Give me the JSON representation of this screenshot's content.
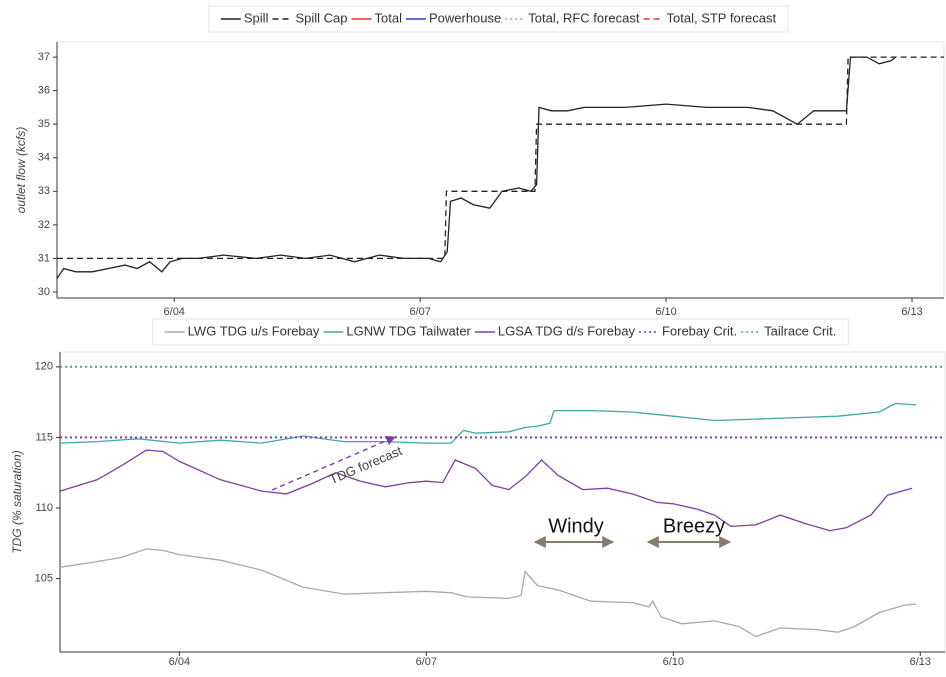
{
  "chart_data": [
    {
      "type": "line",
      "ylabel": "outlet flow (kcfs)",
      "xlim": [
        2.57,
        13.39
      ],
      "ylim": [
        29.82,
        37.45
      ],
      "xticks": [
        {
          "value": 4,
          "label": "6/04"
        },
        {
          "value": 7,
          "label": "6/07"
        },
        {
          "value": 10,
          "label": "6/10"
        },
        {
          "value": 13,
          "label": "6/13"
        }
      ],
      "yticks": [
        30,
        31,
        32,
        33,
        34,
        35,
        36,
        37
      ],
      "series": [
        {
          "name": "Spill",
          "color": "#222222",
          "dash": "solid",
          "x": [
            2.57,
            2.65,
            2.8,
            3.0,
            3.2,
            3.4,
            3.55,
            3.7,
            3.85,
            3.95,
            4.1,
            4.3,
            4.6,
            5.0,
            5.3,
            5.6,
            5.9,
            6.2,
            6.5,
            6.8,
            7.1,
            7.25,
            7.33,
            7.37,
            7.5,
            7.65,
            7.85,
            8.0,
            8.2,
            8.35,
            8.42,
            8.45,
            8.6,
            8.8,
            9.0,
            9.5,
            10.0,
            10.5,
            11.0,
            11.3,
            11.6,
            11.8,
            12.0,
            12.2,
            12.25,
            12.45,
            12.6,
            12.75,
            12.8
          ],
          "values": [
            30.4,
            30.7,
            30.6,
            30.6,
            30.7,
            30.8,
            30.7,
            30.9,
            30.6,
            30.9,
            31.0,
            31.0,
            31.1,
            31.0,
            31.1,
            31.0,
            31.1,
            30.9,
            31.1,
            31.0,
            31.0,
            30.9,
            31.2,
            32.7,
            32.8,
            32.6,
            32.5,
            33.0,
            33.1,
            33.0,
            33.2,
            35.5,
            35.4,
            35.4,
            35.5,
            35.5,
            35.6,
            35.5,
            35.5,
            35.4,
            35.0,
            35.4,
            35.4,
            35.4,
            37.0,
            37.0,
            36.8,
            36.9,
            37.0
          ]
        },
        {
          "name": "Spill Cap",
          "color": "#222222",
          "dash": "dashed",
          "x": [
            2.57,
            7.3,
            7.32,
            8.4,
            8.42,
            12.2,
            12.22,
            13.39
          ],
          "values": [
            31,
            31,
            33,
            33,
            35,
            35,
            37,
            37
          ]
        },
        {
          "name": "Total",
          "color": "#e8392f",
          "dash": "solid",
          "x": [],
          "values": []
        },
        {
          "name": "Powerhouse",
          "color": "#2b3fd6",
          "dash": "solid",
          "x": [],
          "values": []
        },
        {
          "name": "Total, RFC forecast",
          "color": "#f07a8a",
          "dash": "dotted",
          "x": [],
          "values": []
        },
        {
          "name": "Total, STP forecast",
          "color": "#e8392f",
          "dash": "dashed",
          "x": [],
          "values": []
        }
      ]
    },
    {
      "type": "line",
      "ylabel": "TDG (% saturation)",
      "xlim": [
        2.55,
        13.3
      ],
      "ylim": [
        99.8,
        121.05
      ],
      "xticks": [
        {
          "value": 4,
          "label": "6/04"
        },
        {
          "value": 7,
          "label": "6/07"
        },
        {
          "value": 10,
          "label": "6/10"
        },
        {
          "value": 13,
          "label": "6/13"
        }
      ],
      "yticks": [
        105,
        110,
        115,
        120
      ],
      "annotations": [
        "TDG forecast",
        "Windy",
        "Breezy"
      ],
      "series": [
        {
          "name": "LWG TDG u/s Forebay",
          "color": "#a8a8a8",
          "dash": "solid",
          "x": [
            2.55,
            3.0,
            3.3,
            3.6,
            3.8,
            4.0,
            4.5,
            5.0,
            5.5,
            6.0,
            6.5,
            7.0,
            7.3,
            7.5,
            8.0,
            8.15,
            8.2,
            8.35,
            8.6,
            9.0,
            9.5,
            9.7,
            9.75,
            9.85,
            10.1,
            10.5,
            10.8,
            11.0,
            11.3,
            11.7,
            12.0,
            12.2,
            12.5,
            12.8,
            12.95
          ],
          "values": [
            105.8,
            106.2,
            106.5,
            107.1,
            107.0,
            106.7,
            106.3,
            105.6,
            104.4,
            103.9,
            104.0,
            104.1,
            104.0,
            103.7,
            103.6,
            103.8,
            105.5,
            104.5,
            104.2,
            103.4,
            103.3,
            103.0,
            103.4,
            102.3,
            101.8,
            102.0,
            101.6,
            100.9,
            101.5,
            101.4,
            101.2,
            101.6,
            102.6,
            103.1,
            103.2
          ]
        },
        {
          "name": "LGNW TDG Tailwater",
          "color": "#3ea8a8",
          "dash": "solid",
          "x": [
            2.55,
            3.0,
            3.5,
            4.0,
            4.5,
            5.0,
            5.5,
            6.0,
            6.5,
            7.0,
            7.3,
            7.45,
            7.6,
            8.0,
            8.2,
            8.35,
            8.5,
            8.55,
            9.0,
            9.5,
            10.0,
            10.5,
            11.0,
            11.5,
            12.0,
            12.5,
            12.7,
            12.95
          ],
          "values": [
            114.6,
            114.7,
            114.9,
            114.6,
            114.8,
            114.6,
            115.1,
            114.7,
            114.7,
            114.6,
            114.6,
            115.5,
            115.3,
            115.4,
            115.7,
            115.8,
            116.0,
            116.9,
            116.9,
            116.8,
            116.5,
            116.2,
            116.3,
            116.4,
            116.5,
            116.8,
            117.4,
            117.3
          ]
        },
        {
          "name": "LGSA TDG d/s Forebay",
          "color": "#7d3fa3",
          "dash": "solid",
          "x": [
            2.55,
            3.0,
            3.3,
            3.6,
            3.8,
            4.0,
            4.5,
            5.0,
            5.3,
            5.6,
            5.9,
            6.2,
            6.5,
            6.8,
            7.0,
            7.2,
            7.35,
            7.6,
            7.8,
            8.0,
            8.2,
            8.4,
            8.6,
            8.9,
            9.2,
            9.5,
            9.8,
            10.0,
            10.3,
            10.5,
            10.7,
            11.0,
            11.3,
            11.6,
            11.9,
            12.1,
            12.4,
            12.6,
            12.9
          ],
          "values": [
            111.2,
            112.0,
            113.0,
            114.1,
            114.0,
            113.3,
            112.0,
            111.2,
            111.0,
            111.7,
            112.5,
            111.9,
            111.5,
            111.8,
            111.9,
            111.8,
            113.4,
            112.8,
            111.6,
            111.3,
            112.2,
            113.4,
            112.3,
            111.3,
            111.4,
            111.0,
            110.4,
            110.3,
            109.9,
            109.5,
            108.7,
            108.8,
            109.5,
            108.9,
            108.4,
            108.6,
            109.5,
            110.9,
            111.4
          ]
        },
        {
          "name": "Forebay Crit.",
          "color": "#7d3fa3",
          "dash": "dotted",
          "x": [
            2.55,
            13.3
          ],
          "values": [
            115,
            115
          ]
        },
        {
          "name": "Tailrace Crit.",
          "color": "#3ea8a8",
          "dash": "dotted",
          "x": [
            2.55,
            13.3
          ],
          "values": [
            120,
            120
          ]
        }
      ]
    }
  ]
}
